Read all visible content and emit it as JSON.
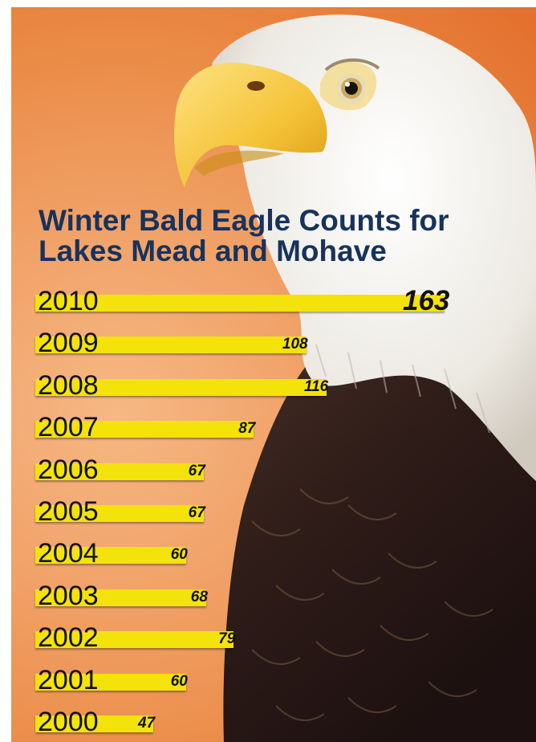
{
  "chart_data": {
    "type": "bar",
    "orientation": "horizontal",
    "title": "Winter Bald Eagle Counts for Lakes Mead and Mohave",
    "title_lines": [
      "Winter Bald Eagle Counts for",
      "Lakes Mead and Mohave"
    ],
    "categories": [
      "2010",
      "2009",
      "2008",
      "2007",
      "2006",
      "2005",
      "2004",
      "2003",
      "2002",
      "2001",
      "2000"
    ],
    "values": [
      163,
      108,
      116,
      87,
      67,
      67,
      60,
      68,
      79,
      60,
      47
    ],
    "value_labels": [
      "163",
      "108",
      "116",
      "87",
      "67",
      "67",
      "60",
      "68",
      "79",
      "60",
      "47"
    ],
    "xlim": [
      0,
      163
    ],
    "grid": false,
    "bar_color": "#f4e20b",
    "background_color": "#ea8a45",
    "title_color": "#17335c"
  }
}
